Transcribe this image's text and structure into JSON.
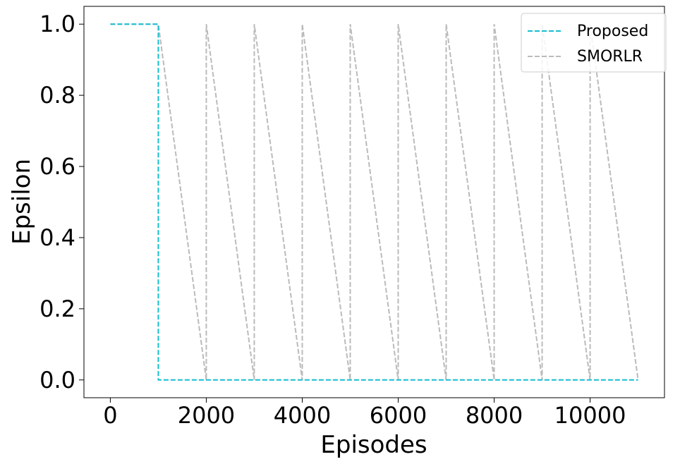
{
  "chart_data": {
    "type": "line",
    "title": "",
    "xlabel": "Episodes",
    "ylabel": "Epsilon",
    "xlim": [
      -550,
      11550
    ],
    "ylim": [
      -0.05,
      1.05
    ],
    "xticks": [
      0,
      2000,
      4000,
      6000,
      8000,
      10000
    ],
    "xtick_labels": [
      "0",
      "2000",
      "4000",
      "6000",
      "8000",
      "10000"
    ],
    "yticks": [
      0.0,
      0.2,
      0.4,
      0.6,
      0.8,
      1.0
    ],
    "ytick_labels": [
      "0.0",
      "0.2",
      "0.4",
      "0.6",
      "0.8",
      "1.0"
    ],
    "grid": false,
    "legend_position": "top-right",
    "series": [
      {
        "name": "Proposed",
        "color": "#17becf",
        "linestyle": "dashed",
        "x": [
          0,
          1000,
          1000,
          11000
        ],
        "y": [
          1.0,
          1.0,
          0.0,
          0.0
        ]
      },
      {
        "name": "SMORLR",
        "color": "#bbbbbb",
        "linestyle": "dashed",
        "x": [
          0,
          1000,
          2000,
          2000,
          3000,
          3000,
          4000,
          4000,
          5000,
          5000,
          6000,
          6000,
          7000,
          7000,
          8000,
          8000,
          9000,
          9000,
          10000,
          10000,
          11000
        ],
        "y": [
          1.0,
          1.0,
          0.0,
          1.0,
          0.0,
          1.0,
          0.0,
          1.0,
          0.0,
          1.0,
          0.0,
          1.0,
          0.0,
          1.0,
          0.0,
          1.0,
          0.0,
          1.0,
          0.0,
          1.0,
          0.0
        ]
      }
    ]
  }
}
